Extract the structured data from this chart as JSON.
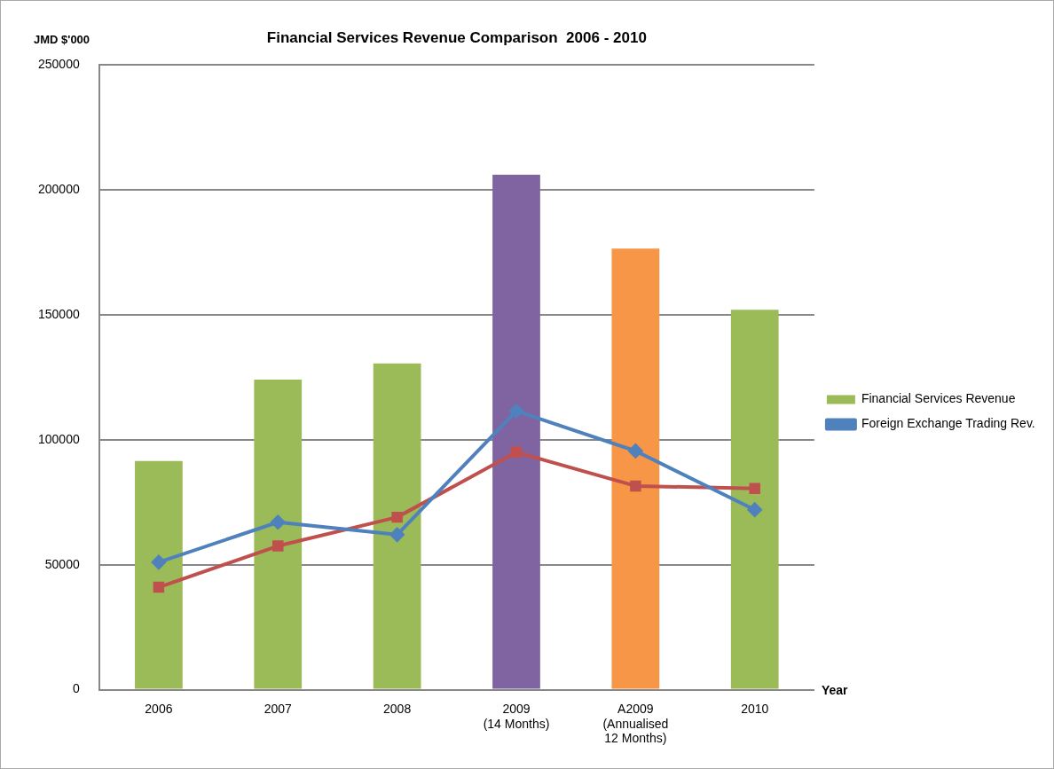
{
  "chart_data": {
    "type": "bar",
    "title": "Financial Services Revenue Comparison  2006 - 2010",
    "xlabel": "Year",
    "ylabel": "JMD $'000",
    "categories": [
      "2006",
      "2007",
      "2008",
      "2009\n(14 Months)",
      "A2009\n(Annualised\n12 Months)",
      "2010"
    ],
    "series": [
      {
        "type": "bar",
        "name": "Financial Services Revenue",
        "color": "#9bbb59",
        "colors": [
          "#9bbb59",
          "#9bbb59",
          "#9bbb59",
          "#8064a2",
          "#f79646",
          "#9bbb59"
        ],
        "values": [
          91500,
          124000,
          130500,
          206000,
          176500,
          152000
        ]
      },
      {
        "type": "line",
        "name": "Foreign Exchange Trading Rev.",
        "color": "#4f81bd",
        "marker": "diamond",
        "values": [
          51000,
          67000,
          62000,
          111500,
          95500,
          72000
        ]
      },
      {
        "type": "line",
        "color": "#c0504d",
        "marker": "square",
        "values": [
          41000,
          57500,
          69000,
          95000,
          81500,
          80500
        ]
      }
    ],
    "ylim": [
      0,
      250000
    ],
    "yticks": [
      0,
      50000,
      100000,
      150000,
      200000,
      250000
    ],
    "grid": "y",
    "legend": "right"
  }
}
